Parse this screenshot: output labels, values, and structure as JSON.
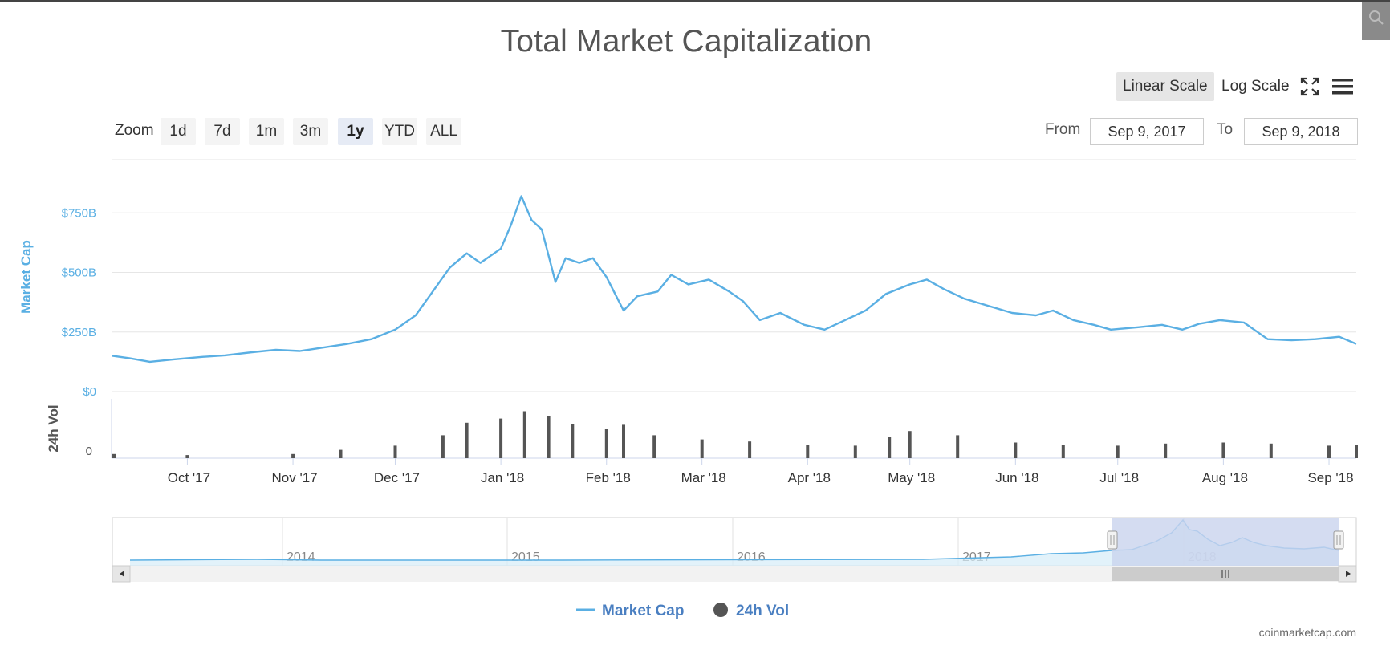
{
  "title": "Total Market Capitalization",
  "toolbar": {
    "linear_label": "Linear Scale",
    "log_label": "Log Scale",
    "fullscreen_icon": "fullscreen-icon",
    "menu_icon": "hamburger-menu-icon"
  },
  "zoom": {
    "label": "Zoom",
    "buttons": [
      "1d",
      "7d",
      "1m",
      "3m",
      "1y",
      "YTD",
      "ALL"
    ],
    "selected": "1y"
  },
  "range": {
    "from_label": "From",
    "from_value": "Sep 9, 2017",
    "to_label": "To",
    "to_value": "Sep 9, 2018"
  },
  "credits": "coinmarketcap.com",
  "colors": {
    "market_cap": "#5aafe3",
    "volume": "#555555",
    "legend_text": "#4a7fc1",
    "navigator_mask": "#c9d3ee"
  },
  "chart_data": {
    "type": "line",
    "grid": true,
    "legend_position": "bottom-center",
    "x_range": [
      "2017-09-09",
      "2018-09-09"
    ],
    "x_ticks": [
      "Oct '17",
      "Nov '17",
      "Dec '17",
      "Jan '18",
      "Feb '18",
      "Mar '18",
      "Apr '18",
      "May '18",
      "Jun '18",
      "Jul '18",
      "Aug '18",
      "Sep '18"
    ],
    "y_axis": {
      "label": "Market Cap",
      "ticks": [
        "$0",
        "$250B",
        "$500B",
        "$750B"
      ],
      "ylim": [
        0,
        900
      ],
      "unit": "B USD"
    },
    "volume_axis": {
      "label": "24h Vol",
      "ticks": [
        "0"
      ]
    },
    "series": [
      {
        "name": "Market Cap",
        "unit": "B USD",
        "x": [
          "2017-09-09",
          "2017-09-14",
          "2017-09-20",
          "2017-09-27",
          "2017-10-05",
          "2017-10-12",
          "2017-10-20",
          "2017-10-27",
          "2017-11-03",
          "2017-11-10",
          "2017-11-17",
          "2017-11-24",
          "2017-12-01",
          "2017-12-07",
          "2017-12-12",
          "2017-12-17",
          "2017-12-22",
          "2017-12-26",
          "2018-01-01",
          "2018-01-04",
          "2018-01-07",
          "2018-01-10",
          "2018-01-13",
          "2018-01-17",
          "2018-01-20",
          "2018-01-24",
          "2018-01-28",
          "2018-02-01",
          "2018-02-06",
          "2018-02-10",
          "2018-02-16",
          "2018-02-20",
          "2018-02-25",
          "2018-03-03",
          "2018-03-09",
          "2018-03-13",
          "2018-03-18",
          "2018-03-24",
          "2018-03-31",
          "2018-04-06",
          "2018-04-12",
          "2018-04-18",
          "2018-04-24",
          "2018-05-01",
          "2018-05-06",
          "2018-05-11",
          "2018-05-17",
          "2018-05-24",
          "2018-05-31",
          "2018-06-07",
          "2018-06-12",
          "2018-06-18",
          "2018-06-24",
          "2018-06-29",
          "2018-07-07",
          "2018-07-14",
          "2018-07-20",
          "2018-07-25",
          "2018-07-31",
          "2018-08-07",
          "2018-08-14",
          "2018-08-21",
          "2018-08-28",
          "2018-09-04",
          "2018-09-09"
        ],
        "values": [
          150,
          140,
          125,
          135,
          145,
          152,
          165,
          175,
          170,
          185,
          200,
          220,
          260,
          320,
          420,
          520,
          580,
          540,
          600,
          700,
          820,
          720,
          680,
          460,
          560,
          540,
          560,
          480,
          340,
          400,
          420,
          490,
          450,
          470,
          420,
          380,
          300,
          330,
          280,
          260,
          300,
          340,
          410,
          450,
          470,
          430,
          390,
          360,
          330,
          320,
          340,
          300,
          280,
          260,
          270,
          280,
          260,
          285,
          300,
          290,
          220,
          215,
          220,
          230,
          200
        ]
      },
      {
        "name": "24h Vol",
        "unit": "B USD",
        "x": [
          "2017-09-09",
          "2017-10-01",
          "2017-11-01",
          "2017-11-15",
          "2017-12-01",
          "2017-12-15",
          "2017-12-22",
          "2018-01-01",
          "2018-01-08",
          "2018-01-15",
          "2018-01-22",
          "2018-02-01",
          "2018-02-06",
          "2018-02-15",
          "2018-03-01",
          "2018-03-15",
          "2018-04-01",
          "2018-04-15",
          "2018-04-25",
          "2018-05-01",
          "2018-05-15",
          "2018-06-01",
          "2018-06-15",
          "2018-07-01",
          "2018-07-15",
          "2018-08-01",
          "2018-08-15",
          "2018-09-01",
          "2018-09-09"
        ],
        "values": [
          4,
          3,
          4,
          8,
          12,
          22,
          34,
          38,
          45,
          40,
          33,
          28,
          32,
          22,
          18,
          16,
          13,
          12,
          20,
          26,
          22,
          15,
          13,
          12,
          14,
          15,
          14,
          12,
          13
        ]
      }
    ],
    "navigator": {
      "year_labels": [
        "2014",
        "2015",
        "2016",
        "2017",
        "2018"
      ],
      "selected_range": [
        "2017-09-09",
        "2018-09-09"
      ]
    }
  }
}
